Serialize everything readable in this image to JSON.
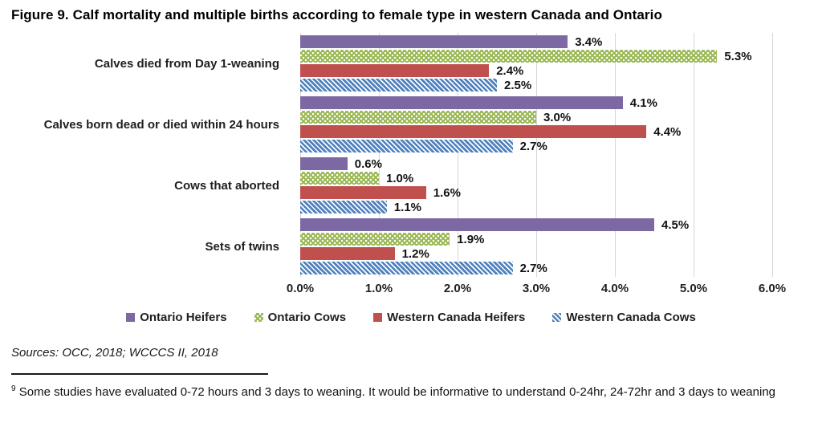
{
  "title": "Figure 9. Calf mortality and multiple births according to female type in western Canada and Ontario",
  "chart_data": {
    "type": "bar",
    "orientation": "horizontal",
    "title": "Figure 9. Calf mortality and multiple births according to female type in western Canada and Ontario",
    "categories": [
      "Calves died from Day 1-weaning",
      "Calves born dead or died within 24 hours",
      "Cows that aborted",
      "Sets of twins"
    ],
    "series": [
      {
        "name": "Ontario Heifers",
        "color": "#7C68A3",
        "pattern": "solid",
        "values": [
          3.4,
          4.1,
          0.6,
          4.5
        ]
      },
      {
        "name": "Ontario Cows",
        "color": "#9CBA58",
        "pattern": "dots",
        "values": [
          5.3,
          3.0,
          1.0,
          1.9
        ]
      },
      {
        "name": "Western Canada Heifers",
        "color": "#C0504D",
        "pattern": "solid",
        "values": [
          2.4,
          4.4,
          1.6,
          1.2
        ]
      },
      {
        "name": "Western Canada Cows",
        "color": "#4F81BD",
        "pattern": "diagonal",
        "values": [
          2.5,
          2.7,
          1.1,
          2.7
        ]
      }
    ],
    "data_label_format": "percent_one_decimal",
    "x_ticks": [
      "0.0%",
      "1.0%",
      "2.0%",
      "3.0%",
      "4.0%",
      "5.0%",
      "6.0%"
    ],
    "xlim": [
      0,
      6
    ],
    "grid": true,
    "gridline_color": "#d6d6d6",
    "legend_position": "bottom"
  },
  "sources": "Sources: OCC, 2018; WCCCS II, 2018",
  "footnote": {
    "marker": "9",
    "text": "Some studies have evaluated 0-72 hours and 3 days to weaning. It would be informative to understand 0-24hr, 24-72hr and 3 days to weaning"
  }
}
